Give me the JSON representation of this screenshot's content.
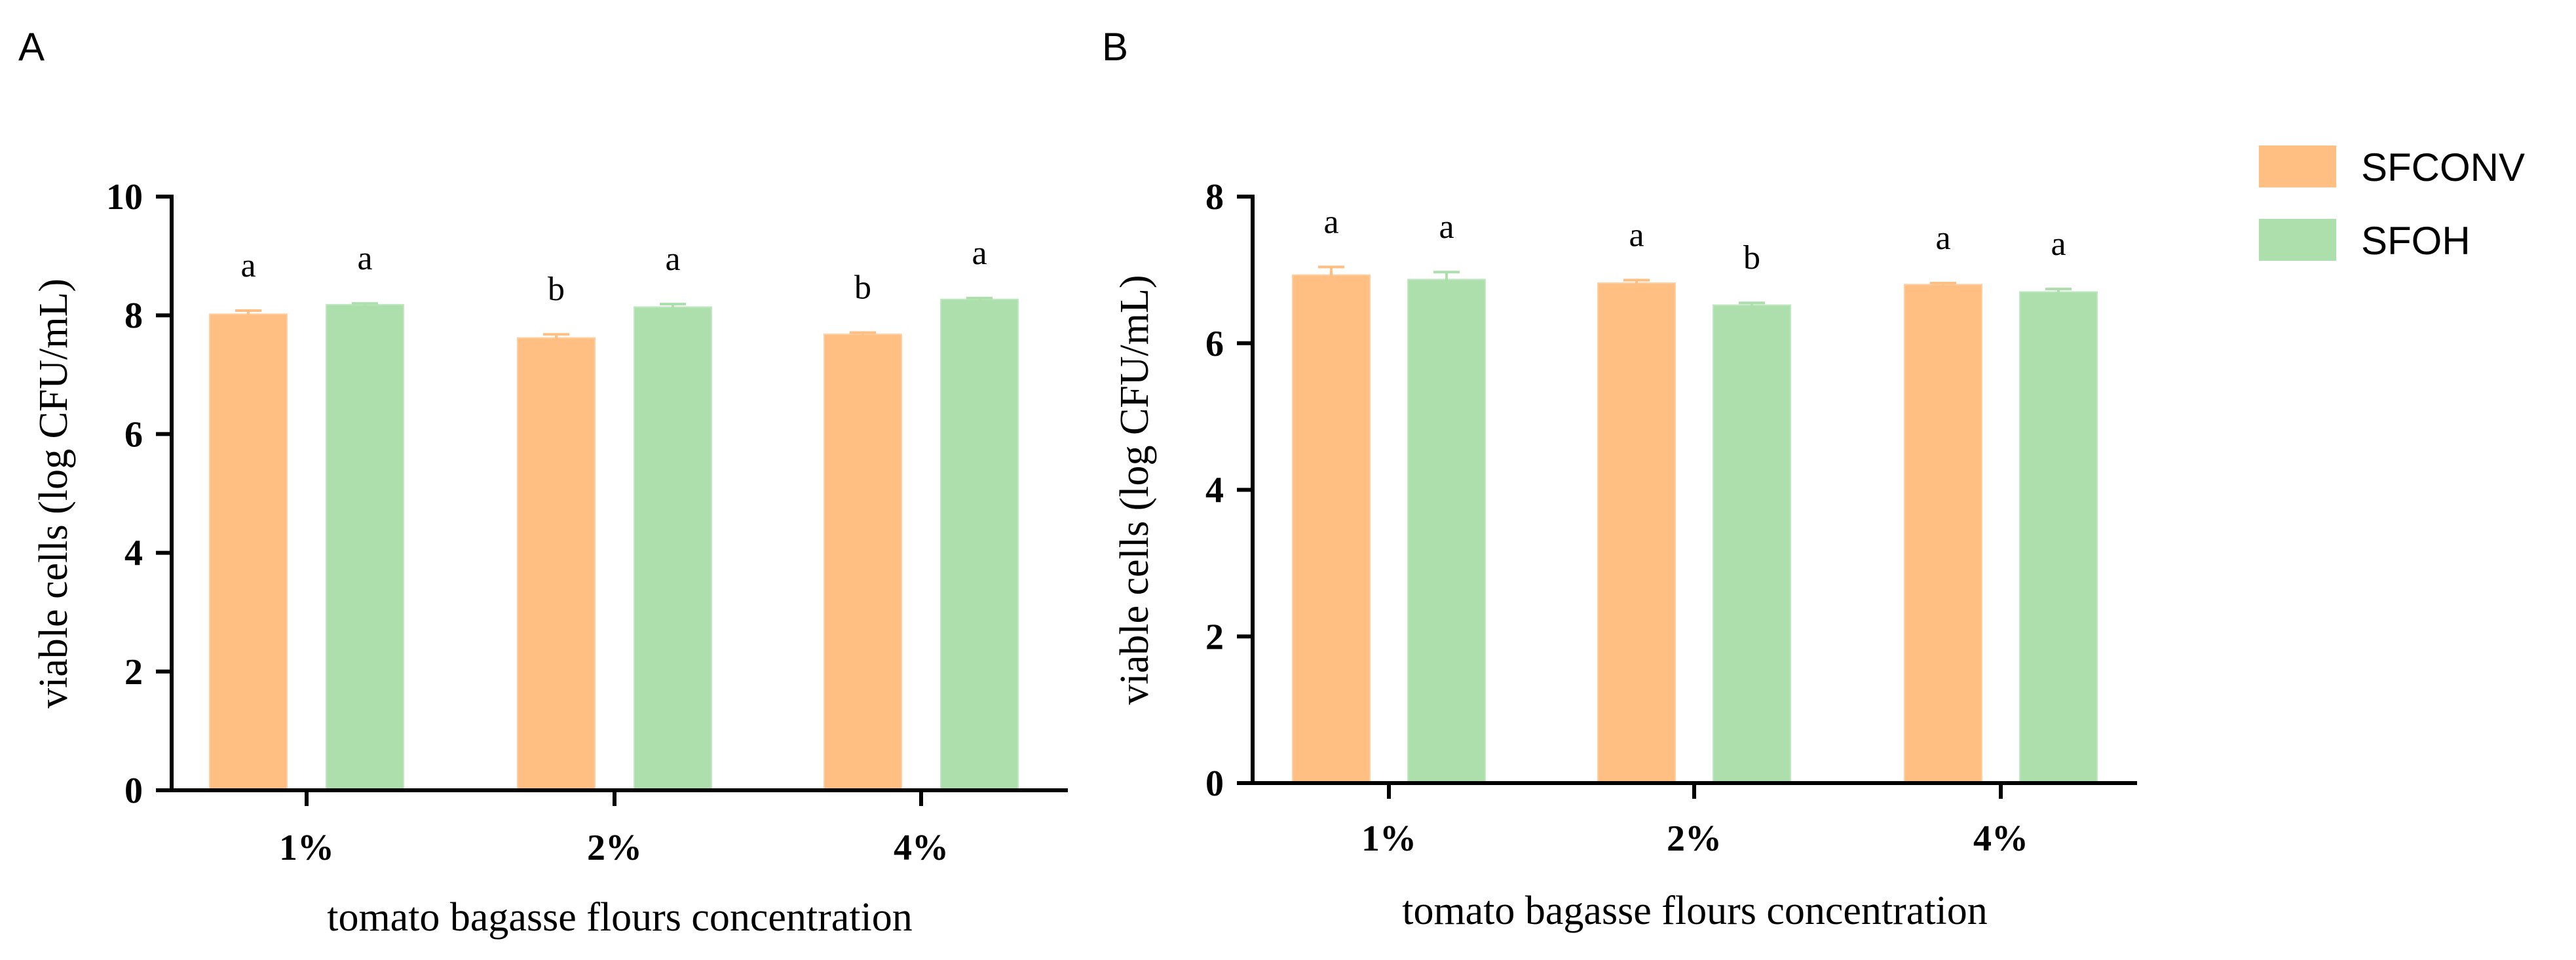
{
  "colors": {
    "SFCONV": "#FFBE82",
    "SFOH": "#ACDFAC",
    "axis": "#000000"
  },
  "legend": {
    "placement": "right",
    "items": [
      {
        "name": "SFCONV",
        "color_key": "SFCONV"
      },
      {
        "name": "SFOH",
        "color_key": "SFOH"
      }
    ]
  },
  "chart_data": [
    {
      "type": "bar",
      "panel": "A",
      "categories": [
        "1%",
        "2%",
        "4%"
      ],
      "series": [
        {
          "name": "SFCONV",
          "values": [
            8.02,
            7.62,
            7.68
          ],
          "errors": [
            0.06,
            0.06,
            0.03
          ],
          "labels": [
            "a",
            "b",
            "b"
          ]
        },
        {
          "name": "SFOH",
          "values": [
            8.18,
            8.14,
            8.27
          ],
          "errors": [
            0.02,
            0.05,
            0.02
          ],
          "labels": [
            "a",
            "a",
            "a"
          ]
        }
      ],
      "xlabel": "tomato bagasse flours concentration",
      "ylabel": "viable cells (log CFU/mL)",
      "ylim": [
        0,
        10
      ],
      "yticks": [
        "0",
        "2",
        "4",
        "6",
        "8",
        "10"
      ],
      "grid": false
    },
    {
      "type": "bar",
      "panel": "B",
      "categories": [
        "1%",
        "2%",
        "4%"
      ],
      "series": [
        {
          "name": "SFCONV",
          "values": [
            6.93,
            6.82,
            6.8
          ],
          "errors": [
            0.11,
            0.04,
            0.02
          ],
          "labels": [
            "a",
            "a",
            "a"
          ]
        },
        {
          "name": "SFOH",
          "values": [
            6.87,
            6.52,
            6.7
          ],
          "errors": [
            0.1,
            0.03,
            0.04
          ],
          "labels": [
            "a",
            "b",
            "a"
          ]
        }
      ],
      "xlabel": "tomato bagasse flours concentration",
      "ylabel": "viable cells (log CFU/mL)",
      "ylim": [
        0,
        8
      ],
      "yticks": [
        "0",
        "2",
        "4",
        "6",
        "8"
      ],
      "grid": false
    }
  ]
}
